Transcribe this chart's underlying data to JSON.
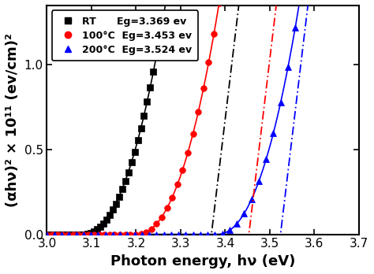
{
  "title": "",
  "xlabel": "Photon energy, hν (eV)",
  "ylabel": "(αhν)² × 10¹¹ (ev/cm)²",
  "xlim": [
    3.0,
    3.7
  ],
  "ylim": [
    0.0,
    1.35
  ],
  "xticks": [
    3.0,
    3.1,
    3.2,
    3.3,
    3.4,
    3.5,
    3.6,
    3.7
  ],
  "yticks": [
    0.0,
    0.5,
    1.0
  ],
  "series": [
    {
      "label": "RT      Eg=3.369 ev",
      "color": "black",
      "marker": "s",
      "eg": 3.369,
      "curve_onset": 3.08,
      "curve_scale": 55.0,
      "curve_power": 2.2,
      "fit_midx": 3.36,
      "fit_slope": 22.0,
      "linestyle": "-."
    },
    {
      "label": "100°C  Eg=3.453 ev",
      "color": "red",
      "marker": "o",
      "eg": 3.453,
      "curve_onset": 3.2,
      "curve_scale": 55.0,
      "curve_power": 2.2,
      "fit_midx": 3.45,
      "fit_slope": 22.0,
      "linestyle": "-."
    },
    {
      "label": "200°C  Eg=3.524 ev",
      "color": "blue",
      "marker": "^",
      "eg": 3.524,
      "curve_onset": 3.38,
      "curve_scale": 55.0,
      "curve_power": 2.2,
      "fit_midx": 3.52,
      "fit_slope": 22.0,
      "linestyle": "-."
    }
  ],
  "background_color": "#ffffff",
  "legend_fontsize": 9,
  "axis_label_fontsize": 13,
  "tick_fontsize": 11
}
